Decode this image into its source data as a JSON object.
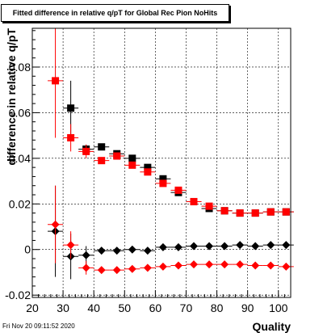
{
  "title": "Fitted difference in relative q/pT for Global Rec Pion NoHits",
  "timestamp": "Fri Nov 20 09:11:52 2020",
  "chart_data": {
    "type": "scatter",
    "title": "Fitted difference in relative q/pT for Global Rec Pion NoHits",
    "xlabel": "Quality",
    "ylabel": "difference in relative q/pT",
    "xlim": [
      20,
      104
    ],
    "ylim": [
      -0.021,
      0.097
    ],
    "grid": true,
    "x_ticks": [
      20,
      30,
      40,
      50,
      60,
      70,
      80,
      90,
      100
    ],
    "y_ticks": [
      "-0.02",
      "0",
      "0.02",
      "0.04",
      "0.06",
      "0.08"
    ],
    "y_tick_values": [
      -0.02,
      0,
      0.02,
      0.04,
      0.06,
      0.08
    ],
    "series": [
      {
        "color": "#000000",
        "marker": "square",
        "x": [
          32.5,
          37.5,
          42.5,
          47.5,
          52.5,
          57.5,
          62.5,
          67.5,
          72.5,
          77.5,
          82.5,
          87.5,
          92.5,
          97.5,
          102.5
        ],
        "y": [
          0.062,
          0.044,
          0.045,
          0.042,
          0.04,
          0.036,
          0.031,
          0.025,
          0.021,
          0.018,
          0.017,
          0.016,
          0.016,
          0.0165,
          0.0165
        ],
        "yerr": [
          0.012,
          0.002,
          0.0015,
          0.001,
          0.001,
          0.001,
          0.001,
          0.001,
          0.001,
          0.001,
          0.001,
          0.0008,
          0.0008,
          0.0008,
          0.0008
        ]
      },
      {
        "color": "#ff0000",
        "marker": "square",
        "x": [
          27.5,
          32.5,
          37.5,
          42.5,
          47.5,
          52.5,
          57.5,
          62.5,
          67.5,
          72.5,
          77.5,
          82.5,
          87.5,
          92.5,
          97.5,
          102.5
        ],
        "y": [
          0.074,
          0.049,
          0.043,
          0.039,
          0.041,
          0.037,
          0.034,
          0.029,
          0.026,
          0.021,
          0.019,
          0.017,
          0.016,
          0.016,
          0.0165,
          0.0165
        ],
        "yerr": [
          0.025,
          0.006,
          0.003,
          0.0015,
          0.0015,
          0.001,
          0.001,
          0.001,
          0.001,
          0.001,
          0.001,
          0.0008,
          0.0008,
          0.0008,
          0.0008,
          0.0008
        ]
      },
      {
        "color": "#000000",
        "marker": "diamond",
        "x": [
          27.5,
          32.5,
          37.5,
          42.5,
          47.5,
          52.5,
          57.5,
          62.5,
          67.5,
          72.5,
          77.5,
          82.5,
          87.5,
          92.5,
          97.5,
          102.5
        ],
        "y": [
          0.008,
          -0.003,
          -0.0025,
          -0.0005,
          -0.0005,
          0.0,
          -0.0005,
          0.001,
          0.001,
          0.0015,
          0.0015,
          0.0015,
          0.002,
          0.0015,
          0.002,
          0.002
        ],
        "yerr": [
          0.02,
          0.01,
          0.004,
          0.0015,
          0.001,
          0.001,
          0.001,
          0.0008,
          0.0008,
          0.0006,
          0.0006,
          0.0006,
          0.0006,
          0.0006,
          0.0006,
          0.0006
        ]
      },
      {
        "color": "#ff0000",
        "marker": "diamond",
        "x": [
          27.5,
          32.5,
          37.5,
          42.5,
          47.5,
          52.5,
          57.5,
          62.5,
          67.5,
          72.5,
          77.5,
          82.5,
          87.5,
          92.5,
          97.5,
          102.5
        ],
        "y": [
          0.011,
          0.002,
          -0.008,
          -0.009,
          -0.009,
          -0.0085,
          -0.008,
          -0.0075,
          -0.007,
          -0.0065,
          -0.0065,
          -0.0065,
          -0.0065,
          -0.007,
          -0.007,
          -0.0075
        ],
        "yerr": [
          0.017,
          0.006,
          0.003,
          0.0015,
          0.001,
          0.001,
          0.001,
          0.0008,
          0.0008,
          0.0006,
          0.0006,
          0.0006,
          0.0006,
          0.0006,
          0.0006,
          0.0006
        ]
      }
    ]
  }
}
